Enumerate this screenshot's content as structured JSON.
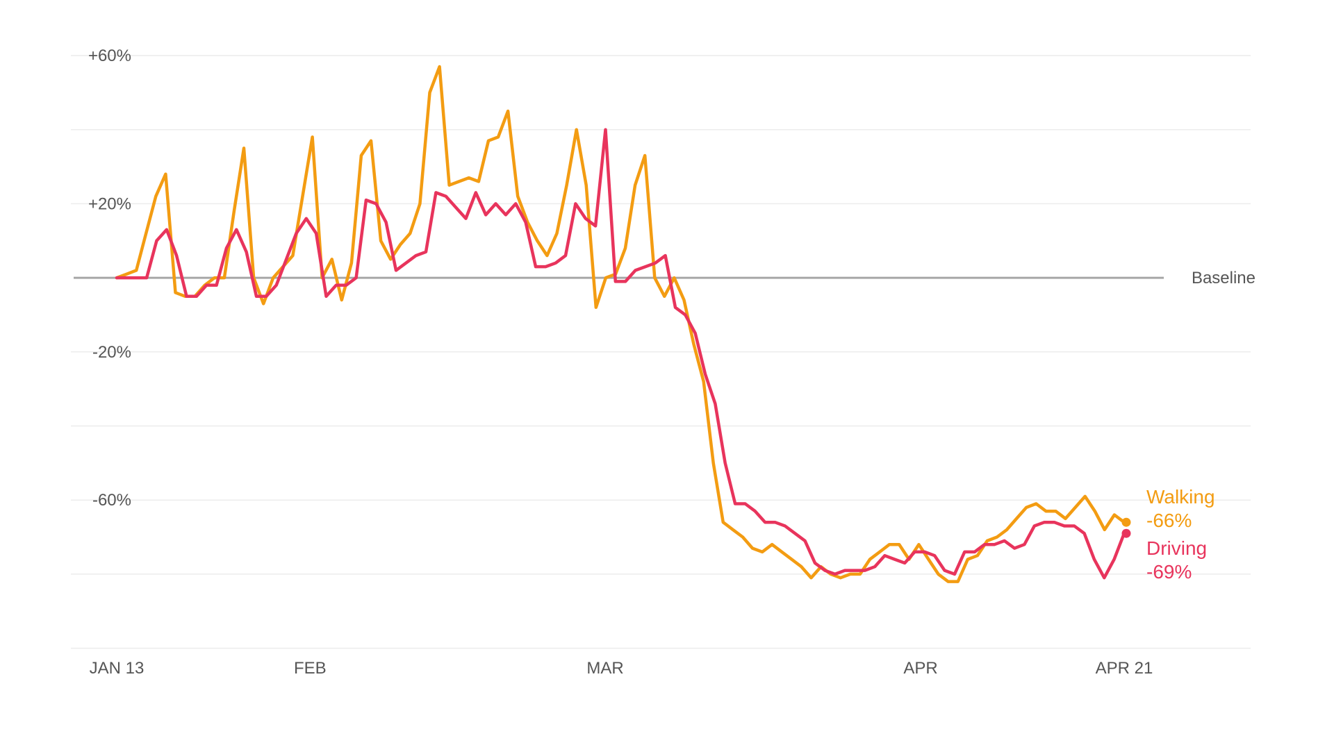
{
  "chart_data": {
    "type": "line",
    "x_start": "2020-01-13",
    "x_end": "2020-04-21",
    "ylim": [
      -100,
      62
    ],
    "y_ticks": [
      {
        "value": 60,
        "label": "+60%"
      },
      {
        "value": 20,
        "label": "+20%"
      },
      {
        "value": -20,
        "label": "-20%"
      },
      {
        "value": -60,
        "label": "-60%"
      }
    ],
    "y_gridlines": [
      60,
      40,
      20,
      -20,
      -40,
      -60,
      -80,
      -100
    ],
    "x_ticks": [
      {
        "date": "2020-01-13",
        "label": "JAN 13"
      },
      {
        "date": "2020-02-01",
        "label": "FEB"
      },
      {
        "date": "2020-03-01",
        "label": "MAR"
      },
      {
        "date": "2020-04-01",
        "label": "APR"
      },
      {
        "date": "2020-04-21",
        "label": "APR 21"
      }
    ],
    "baseline": {
      "value": 0,
      "label": "Baseline",
      "color": "#a6a6a6"
    },
    "series": [
      {
        "name": "Walking",
        "end_value_label": "-66%",
        "color": "#f39c12",
        "values": [
          0,
          1,
          2,
          12,
          22,
          28,
          -4,
          -5,
          -5,
          -2,
          0,
          0,
          18,
          35,
          0,
          -7,
          0,
          3,
          6,
          22,
          38,
          0,
          5,
          -6,
          4,
          33,
          37,
          10,
          5,
          9,
          12,
          20,
          50,
          57,
          25,
          26,
          27,
          26,
          37,
          38,
          45,
          22,
          15,
          10,
          6,
          12,
          25,
          40,
          25,
          -8,
          0,
          1,
          8,
          25,
          33,
          0,
          -5,
          0,
          -6,
          -18,
          -28,
          -50,
          -66,
          -68,
          -70,
          -73,
          -74,
          -72,
          -74,
          -76,
          -78,
          -81,
          -78,
          -80,
          -81,
          -80,
          -80,
          -76,
          -74,
          -72,
          -72,
          -76,
          -72,
          -76,
          -80,
          -82,
          -82,
          -76,
          -75,
          -71,
          -70,
          -68,
          -65,
          -62,
          -61,
          -63,
          -63,
          -65,
          -62,
          -59,
          -63,
          -68,
          -64,
          -66
        ]
      },
      {
        "name": "Driving",
        "end_value_label": "-69%",
        "color": "#e8345c",
        "values": [
          0,
          0,
          0,
          0,
          10,
          13,
          6,
          -5,
          -5,
          -2,
          -2,
          8,
          13,
          7,
          -5,
          -5,
          -2,
          5,
          12,
          16,
          12,
          -5,
          -2,
          -2,
          0,
          21,
          20,
          15,
          2,
          4,
          6,
          7,
          23,
          22,
          19,
          16,
          23,
          17,
          20,
          17,
          20,
          15,
          3,
          3,
          4,
          6,
          20,
          16,
          14,
          40,
          -1,
          -1,
          2,
          3,
          4,
          6,
          -8,
          -10,
          -15,
          -26,
          -34,
          -50,
          -61,
          -61,
          -63,
          -66,
          -66,
          -67,
          -69,
          -71,
          -77,
          -79,
          -80,
          -79,
          -79,
          -79,
          -78,
          -75,
          -76,
          -77,
          -74,
          -74,
          -75,
          -79,
          -80,
          -74,
          -74,
          -72,
          -72,
          -71,
          -73,
          -72,
          -67,
          -66,
          -66,
          -67,
          -67,
          -69,
          -76,
          -81,
          -76,
          -69
        ]
      }
    ]
  }
}
